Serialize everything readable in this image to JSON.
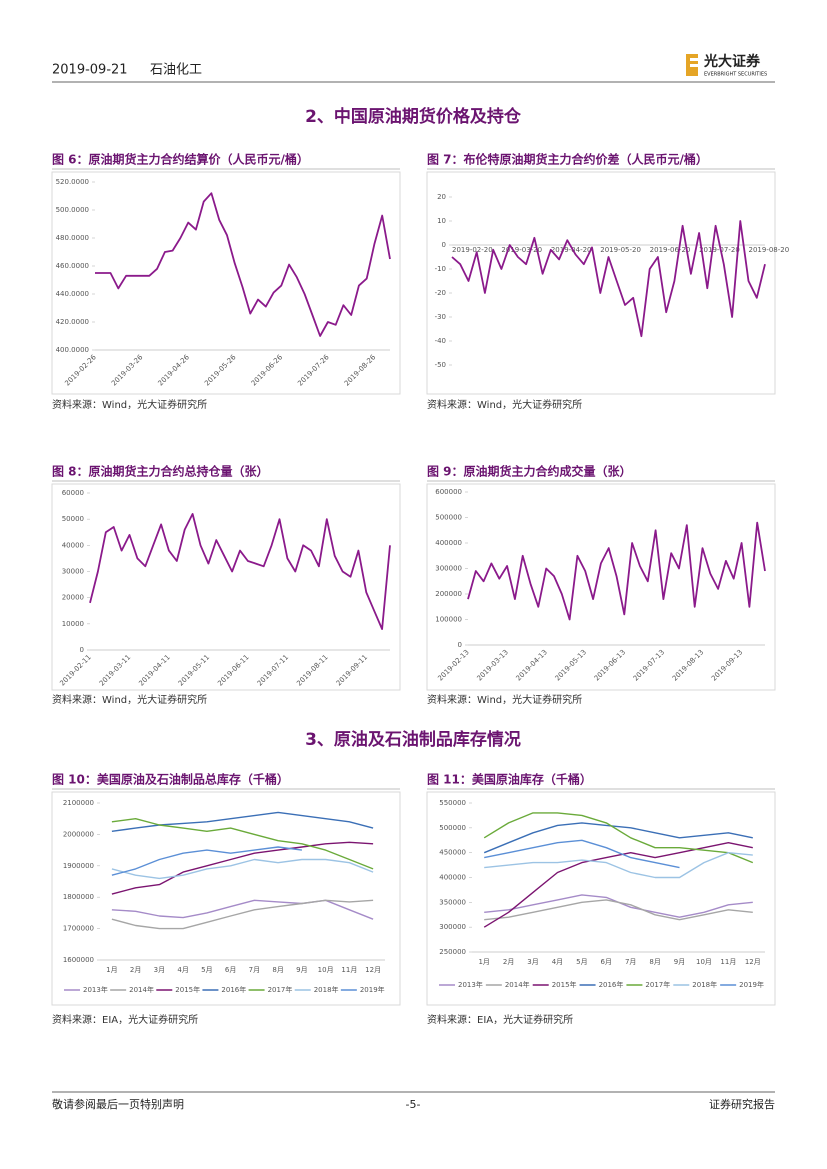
{
  "header": {
    "date": "2019-09-21",
    "sector": "石油化工",
    "brand": "光大证券",
    "brand_en": "EVERBRIGHT SECURITIES"
  },
  "sections": [
    "2、中国原油期货价格及持仓",
    "3、原油及石油制品库存情况"
  ],
  "footer": {
    "left": "敬请参阅最后一页特别声明",
    "page": "-5-",
    "right": "证券研究报告"
  },
  "chart_data": [
    {
      "type": "line",
      "title": "图 6：原油期货主力合约结算价（人民币元/桶）",
      "source": "资料来源：Wind，光大证券研究所",
      "color": "#8b1a8b",
      "categories": [
        "2019-02-26",
        null,
        null,
        null,
        null,
        null,
        "2019-03-26",
        null,
        null,
        null,
        null,
        null,
        "2019-04-26",
        null,
        null,
        null,
        null,
        null,
        "2019-05-26",
        null,
        null,
        null,
        null,
        null,
        "2019-06-26",
        null,
        null,
        null,
        null,
        null,
        "2019-07-26",
        null,
        null,
        null,
        null,
        null,
        "2019-08-26",
        null,
        null
      ],
      "values": [
        455,
        455,
        455,
        444,
        453,
        453,
        453,
        453,
        458,
        470,
        471,
        480,
        491,
        486,
        506,
        512,
        493,
        482,
        462,
        445,
        426,
        436,
        431,
        441,
        446,
        461,
        452,
        440,
        425,
        410,
        420,
        418,
        432,
        425,
        446,
        451,
        476,
        496,
        465
      ],
      "ylim": [
        400,
        520
      ],
      "yticks": [
        {
          "value": 400,
          "label": "400.0000"
        },
        {
          "value": 420,
          "label": "420.0000"
        },
        {
          "value": 440,
          "label": "440.0000"
        },
        {
          "value": 460,
          "label": "460.0000"
        },
        {
          "value": 480,
          "label": "480.0000"
        },
        {
          "value": 500,
          "label": "500.0000"
        },
        {
          "value": 520,
          "label": "520.0000"
        }
      ]
    },
    {
      "type": "line",
      "title": "图 7：布伦特原油期货主力合约价差（人民币元/桶）",
      "source": "资料来源：Wind，光大证券研究所",
      "color": "#8b1a8b",
      "categories": [
        "2019-02-20",
        null,
        null,
        null,
        null,
        null,
        "2019-03-20",
        null,
        null,
        null,
        null,
        null,
        "2019-04-20",
        null,
        null,
        null,
        null,
        null,
        "2019-05-20",
        null,
        null,
        null,
        null,
        null,
        "2019-06-20",
        null,
        null,
        null,
        null,
        null,
        "2019-07-20",
        null,
        null,
        null,
        null,
        null,
        "2019-08-20",
        null,
        null
      ],
      "values": [
        -5,
        -8,
        -15,
        -3,
        -20,
        -2,
        -10,
        0,
        -5,
        -8,
        3,
        -12,
        -2,
        -6,
        2,
        -4,
        -8,
        -1,
        -20,
        -5,
        -15,
        -25,
        -22,
        -38,
        -10,
        -5,
        -28,
        -15,
        8,
        -12,
        5,
        -18,
        8,
        -8,
        -30,
        10,
        -15,
        -22,
        -8
      ],
      "ylim": [
        -50,
        20
      ],
      "yticks": [
        -50,
        -40,
        -30,
        -20,
        -10,
        0,
        10,
        20
      ]
    },
    {
      "type": "line",
      "title": "图 8：原油期货主力合约总持仓量（张）",
      "source": "资料来源：Wind，光大证券研究所",
      "color": "#8b1a8b",
      "categories": [
        "2019-02-11",
        null,
        null,
        null,
        null,
        "2019-03-11",
        null,
        null,
        null,
        null,
        "2019-04-11",
        null,
        null,
        null,
        null,
        "2019-05-11",
        null,
        null,
        null,
        null,
        "2019-06-11",
        null,
        null,
        null,
        null,
        "2019-07-11",
        null,
        null,
        null,
        null,
        "2019-08-11",
        null,
        null,
        null,
        null,
        "2019-09-11",
        null,
        null,
        null
      ],
      "values": [
        18000,
        30000,
        45000,
        47000,
        38000,
        44000,
        35000,
        32000,
        40000,
        48000,
        38000,
        34000,
        46000,
        52000,
        40000,
        33000,
        42000,
        36000,
        30000,
        38000,
        34000,
        33000,
        32000,
        40000,
        50000,
        35000,
        30000,
        40000,
        38000,
        32000,
        50000,
        36000,
        30000,
        28000,
        38000,
        22000,
        15000,
        8000,
        40000
      ],
      "ylim": [
        0,
        60000
      ],
      "yticks": [
        0,
        10000,
        20000,
        30000,
        40000,
        50000,
        60000
      ]
    },
    {
      "type": "line",
      "title": "图 9：原油期货主力合约成交量（张）",
      "source": "资料来源：Wind，光大证券研究所",
      "color": "#8b1a8b",
      "categories": [
        "2019-02-13",
        null,
        null,
        null,
        null,
        "2019-03-13",
        null,
        null,
        null,
        null,
        "2019-04-13",
        null,
        null,
        null,
        null,
        "2019-05-13",
        null,
        null,
        null,
        null,
        "2019-06-13",
        null,
        null,
        null,
        null,
        "2019-07-13",
        null,
        null,
        null,
        null,
        "2019-08-13",
        null,
        null,
        null,
        null,
        "2019-09-13",
        null,
        null,
        null
      ],
      "values": [
        180000,
        290000,
        250000,
        320000,
        260000,
        310000,
        180000,
        350000,
        240000,
        150000,
        300000,
        270000,
        200000,
        100000,
        350000,
        290000,
        180000,
        320000,
        380000,
        270000,
        120000,
        400000,
        310000,
        250000,
        450000,
        180000,
        360000,
        300000,
        470000,
        150000,
        380000,
        280000,
        220000,
        330000,
        260000,
        400000,
        150000,
        480000,
        290000
      ],
      "ylim": [
        0,
        600000
      ],
      "yticks": [
        0,
        100000,
        200000,
        300000,
        400000,
        500000,
        600000
      ]
    },
    {
      "type": "line",
      "title": "图 10：美国原油及石油制品总库存（千桶）",
      "source": "资料来源：EIA，光大证券研究所",
      "categories": [
        "1月",
        "2月",
        "3月",
        "4月",
        "5月",
        "6月",
        "7月",
        "8月",
        "9月",
        "10月",
        "11月",
        "12月"
      ],
      "ylim": [
        1600000,
        2100000
      ],
      "yticks": [
        1600000,
        1700000,
        1800000,
        1900000,
        2000000,
        2100000
      ],
      "series": [
        {
          "name": "2013年",
          "color": "#a58bc8",
          "values": [
            1760000,
            1755000,
            1740000,
            1735000,
            1750000,
            1770000,
            1790000,
            1785000,
            1780000,
            1790000,
            1760000,
            1730000
          ]
        },
        {
          "name": "2014年",
          "color": "#a6a6a6",
          "values": [
            1730000,
            1710000,
            1700000,
            1700000,
            1720000,
            1740000,
            1760000,
            1770000,
            1780000,
            1790000,
            1785000,
            1790000
          ]
        },
        {
          "name": "2015年",
          "color": "#7b1470",
          "values": [
            1810000,
            1830000,
            1840000,
            1880000,
            1900000,
            1920000,
            1940000,
            1950000,
            1960000,
            1970000,
            1975000,
            1970000
          ]
        },
        {
          "name": "2016年",
          "color": "#3b6fb6",
          "values": [
            2010000,
            2020000,
            2030000,
            2035000,
            2040000,
            2050000,
            2060000,
            2070000,
            2060000,
            2050000,
            2040000,
            2020000
          ]
        },
        {
          "name": "2017年",
          "color": "#6aaa3a",
          "values": [
            2040000,
            2050000,
            2030000,
            2020000,
            2010000,
            2020000,
            2000000,
            1980000,
            1970000,
            1950000,
            1920000,
            1890000
          ]
        },
        {
          "name": "2018年",
          "color": "#9cc3e4",
          "values": [
            1890000,
            1870000,
            1860000,
            1870000,
            1890000,
            1900000,
            1920000,
            1910000,
            1920000,
            1920000,
            1910000,
            1880000
          ]
        },
        {
          "name": "2019年",
          "color": "#5b8fd6",
          "values": [
            1870000,
            1890000,
            1920000,
            1940000,
            1950000,
            1940000,
            1950000,
            1960000,
            1950000,
            null,
            null,
            null
          ]
        }
      ]
    },
    {
      "type": "line",
      "title": "图 11：美国原油库存（千桶）",
      "source": "资料来源：EIA，光大证券研究所",
      "categories": [
        "1月",
        "2月",
        "3月",
        "4月",
        "5月",
        "6月",
        "7月",
        "8月",
        "9月",
        "10月",
        "11月",
        "12月"
      ],
      "ylim": [
        250000,
        550000
      ],
      "yticks": [
        250000,
        300000,
        350000,
        400000,
        450000,
        500000,
        550000
      ],
      "series": [
        {
          "name": "2013年",
          "color": "#a58bc8",
          "values": [
            330000,
            335000,
            345000,
            355000,
            365000,
            360000,
            340000,
            330000,
            320000,
            330000,
            345000,
            350000
          ]
        },
        {
          "name": "2014年",
          "color": "#a6a6a6",
          "values": [
            315000,
            320000,
            330000,
            340000,
            350000,
            355000,
            345000,
            325000,
            315000,
            325000,
            335000,
            330000
          ]
        },
        {
          "name": "2015年",
          "color": "#7b1470",
          "values": [
            300000,
            330000,
            370000,
            410000,
            430000,
            440000,
            450000,
            440000,
            450000,
            460000,
            470000,
            460000
          ]
        },
        {
          "name": "2016年",
          "color": "#3b6fb6",
          "values": [
            450000,
            470000,
            490000,
            505000,
            510000,
            505000,
            500000,
            490000,
            480000,
            485000,
            490000,
            480000
          ]
        },
        {
          "name": "2017年",
          "color": "#6aaa3a",
          "values": [
            480000,
            510000,
            530000,
            530000,
            525000,
            510000,
            480000,
            460000,
            460000,
            455000,
            450000,
            430000
          ]
        },
        {
          "name": "2018年",
          "color": "#9cc3e4",
          "values": [
            420000,
            425000,
            430000,
            430000,
            435000,
            430000,
            410000,
            400000,
            400000,
            430000,
            450000,
            445000
          ]
        },
        {
          "name": "2019年",
          "color": "#5b8fd6",
          "values": [
            440000,
            450000,
            460000,
            470000,
            475000,
            460000,
            440000,
            430000,
            420000,
            null,
            null,
            null
          ]
        }
      ]
    }
  ]
}
